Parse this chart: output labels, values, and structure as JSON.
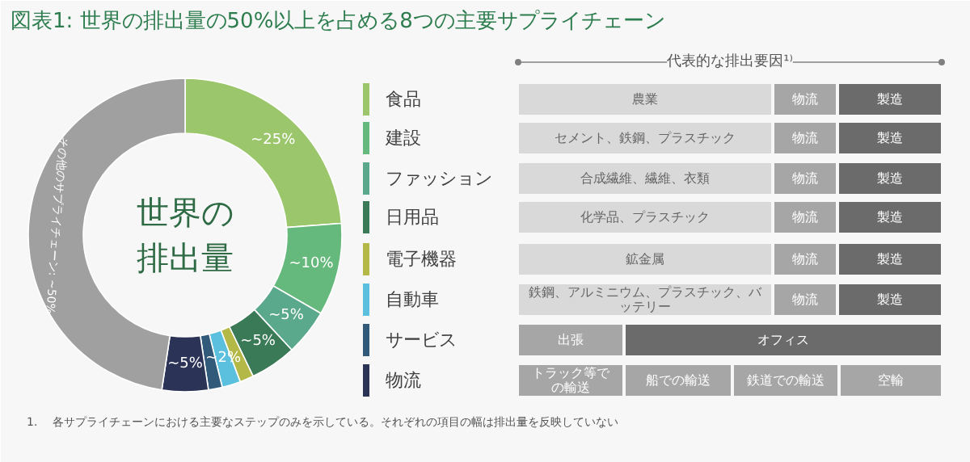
{
  "chart_data": {
    "type": "donut",
    "title": "図表1: 世界の排出量の50%以上を占める8つの主要サプライチェーン",
    "categories": [
      "食品",
      "建設",
      "ファッション",
      "日用品",
      "電子機器",
      "自動車",
      "サービス",
      "物流",
      "その他のサプライチェーン"
    ],
    "values": [
      25,
      10,
      5,
      5,
      1.5,
      2,
      1.5,
      5,
      50
    ],
    "colors": [
      "#9bc66b",
      "#66b97c",
      "#5aa98c",
      "#3b7a57",
      "#b3b847",
      "#5bc0de",
      "#30597a",
      "#2b3357",
      "#a0a0a0"
    ],
    "value_labels": [
      "~25%",
      "~10%",
      "~5%",
      "~5%",
      null,
      "~2%",
      null,
      "~5%",
      "~50%"
    ],
    "legend": "right",
    "annotations": [
      "世界の排出量",
      "代表的な排出要因¹⁾",
      "農業",
      "物流",
      "製造",
      "セメント、鉄鋼、プラスチック",
      "物流",
      "製造",
      "合成繊維、繊維、衣類",
      "物流",
      "製造",
      "化学品、プラスチック",
      "物流",
      "製造",
      "鉱金属",
      "物流",
      "製造",
      "鉄鋼、アルミニウム、プラスチック、バッテリー",
      "物流",
      "製造",
      "出張",
      "オフィス",
      "トラック等での輸送",
      "船での輸送",
      "鉄道での輸送",
      "空輸",
      "1.　 各サプライチェーンにおける主要なステップのみを示している。それぞれの項目の幅は排出量を反映していない"
    ]
  }
}
